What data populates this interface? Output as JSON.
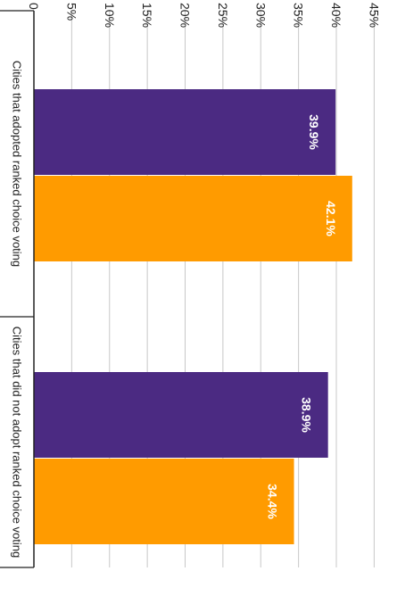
{
  "chart_data": {
    "type": "bar",
    "orientation": "horizontal",
    "categories": [
      "Cities that adopted ranked choice voting",
      "Cities that did not adopt ranked choice voting"
    ],
    "series": [
      {
        "color": "#4b2a82",
        "values": [
          39.9,
          38.9
        ],
        "labels": [
          "39.9%",
          "38.9%"
        ]
      },
      {
        "color": "#ff9b00",
        "values": [
          42.1,
          34.4
        ],
        "labels": [
          "42.1%",
          "34.4%"
        ]
      }
    ],
    "xlim": [
      0,
      45
    ],
    "ticks": [
      0,
      5,
      10,
      15,
      20,
      25,
      30,
      35,
      40,
      45
    ],
    "tick_labels": [
      "0",
      "5%",
      "10%",
      "15%",
      "20%",
      "25%",
      "30%",
      "35%",
      "40%",
      "45%"
    ],
    "grid": true,
    "rotated": "90deg clockwise"
  }
}
